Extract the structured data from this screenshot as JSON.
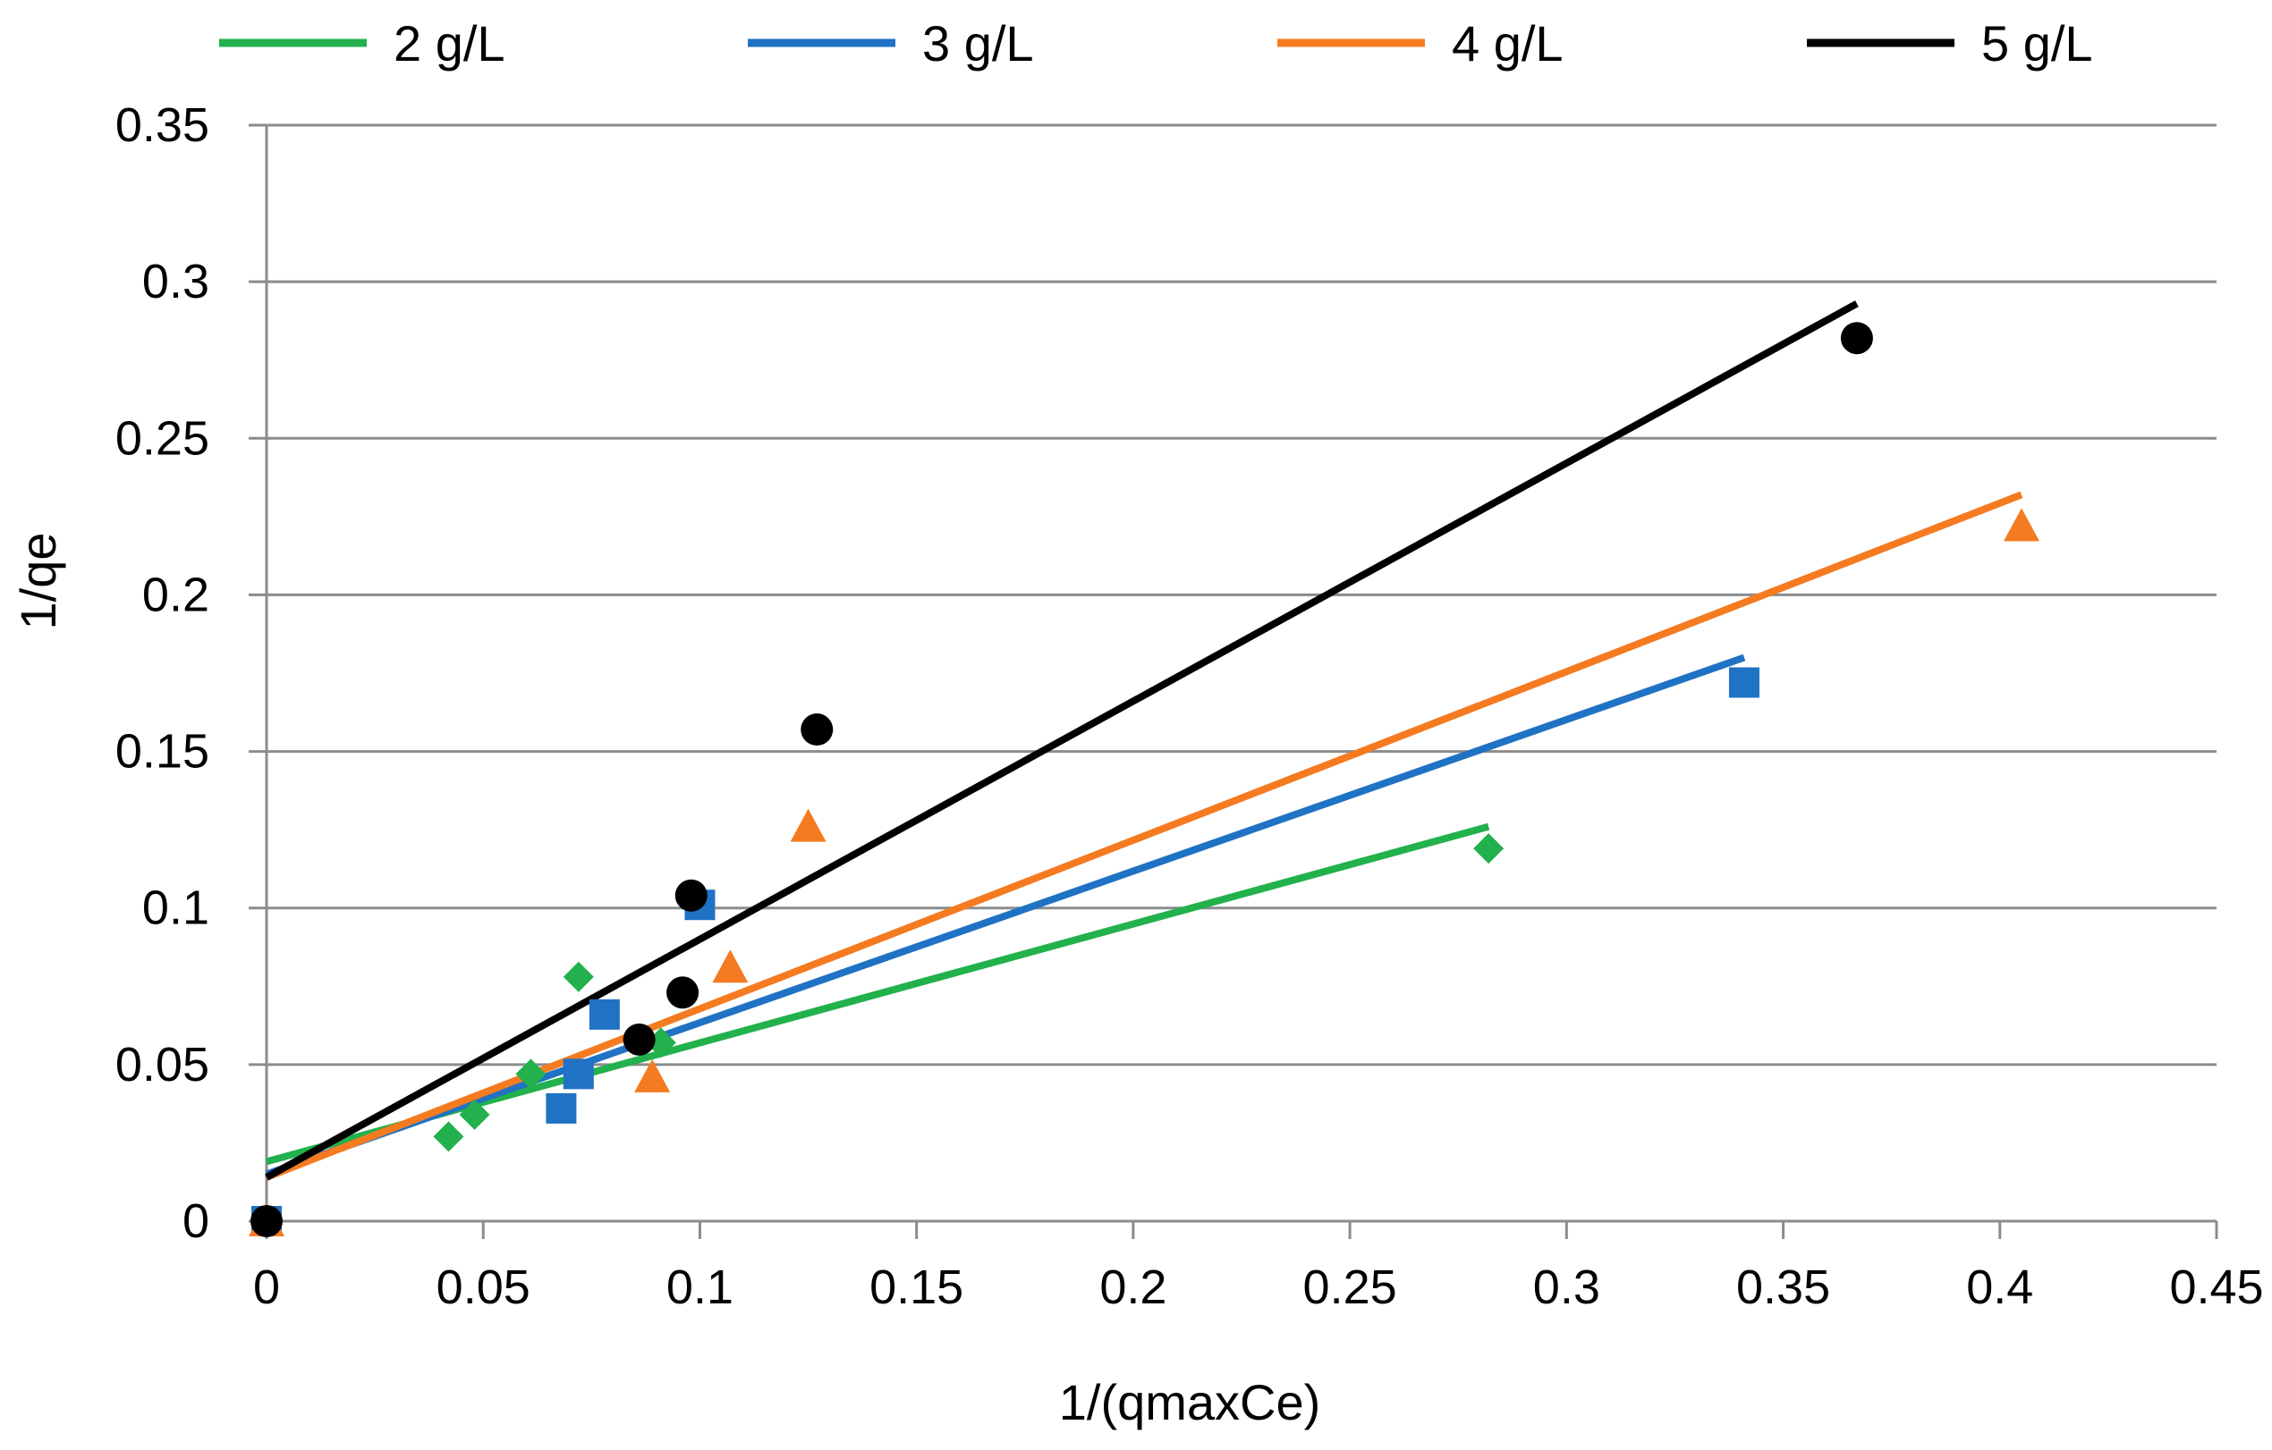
{
  "chart_data": {
    "type": "scatter",
    "title": "",
    "xlabel": "1/(qmaxCe)",
    "ylabel": "1/qe",
    "xlim": [
      0,
      0.45
    ],
    "ylim": [
      0,
      0.35
    ],
    "x_ticks": [
      0,
      0.05,
      0.1,
      0.15,
      0.2,
      0.25,
      0.3,
      0.35,
      0.4,
      0.45
    ],
    "x_tick_labels": [
      "0",
      "0.05",
      "0.1",
      "0.15",
      "0.2",
      "0.25",
      "0.3",
      "0.35",
      "0.4",
      "0.45"
    ],
    "y_ticks": [
      0,
      0.05,
      0.1,
      0.15,
      0.2,
      0.25,
      0.3,
      0.35
    ],
    "y_tick_labels": [
      "0",
      "0.05",
      "0.1",
      "0.15",
      "0.2",
      "0.25",
      "0.3",
      "0.35"
    ],
    "grid": "horizontal",
    "legend_position": "top",
    "series": [
      {
        "name": "2 g/L",
        "color": "#22b14c",
        "marker": "diamond",
        "points": [
          [
            0,
            0
          ],
          [
            0.042,
            0.027
          ],
          [
            0.048,
            0.034
          ],
          [
            0.061,
            0.047
          ],
          [
            0.072,
            0.078
          ],
          [
            0.091,
            0.057
          ],
          [
            0.282,
            0.119
          ]
        ],
        "fit": [
          [
            0,
            0.019
          ],
          [
            0.282,
            0.126
          ]
        ]
      },
      {
        "name": "3 g/L",
        "color": "#1f72c4",
        "marker": "square",
        "points": [
          [
            0,
            0
          ],
          [
            0.068,
            0.036
          ],
          [
            0.072,
            0.047
          ],
          [
            0.078,
            0.066
          ],
          [
            0.1,
            0.101
          ],
          [
            0.341,
            0.172
          ]
        ],
        "fit": [
          [
            0,
            0.015
          ],
          [
            0.341,
            0.18
          ]
        ]
      },
      {
        "name": "4 g/L",
        "color": "#f47b20",
        "marker": "triangle",
        "points": [
          [
            0,
            0
          ],
          [
            0.089,
            0.046
          ],
          [
            0.107,
            0.081
          ],
          [
            0.125,
            0.126
          ],
          [
            0.405,
            0.222
          ]
        ],
        "fit": [
          [
            0,
            0.014
          ],
          [
            0.405,
            0.232
          ]
        ]
      },
      {
        "name": "5 g/L",
        "color": "#000000",
        "marker": "circle",
        "points": [
          [
            0,
            0
          ],
          [
            0.086,
            0.058
          ],
          [
            0.096,
            0.073
          ],
          [
            0.098,
            0.104
          ],
          [
            0.127,
            0.157
          ],
          [
            0.367,
            0.282
          ]
        ],
        "fit": [
          [
            0,
            0.014
          ],
          [
            0.367,
            0.293
          ]
        ]
      }
    ]
  }
}
